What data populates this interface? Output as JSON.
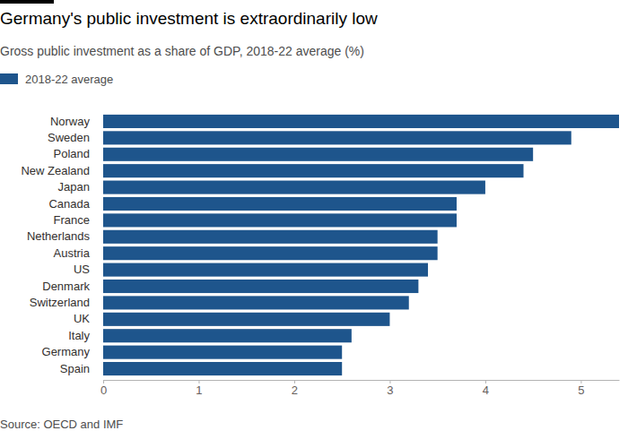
{
  "chart_data": {
    "type": "bar",
    "orientation": "horizontal",
    "title": "Germany's public investment is extraordinarily low",
    "subtitle": "Gross public investment as a share of GDP, 2018-22 average (%)",
    "source": "Source: OECD and IMF",
    "categories": [
      "Norway",
      "Sweden",
      "Poland",
      "New Zealand",
      "Japan",
      "Canada",
      "France",
      "Netherlands",
      "Austria",
      "US",
      "Denmark",
      "Switzerland",
      "UK",
      "Italy",
      "Germany",
      "Spain"
    ],
    "series": [
      {
        "name": "2018-22 average",
        "color": "#1e558c",
        "values": [
          5.4,
          4.9,
          4.5,
          4.4,
          4.0,
          3.7,
          3.7,
          3.5,
          3.5,
          3.4,
          3.3,
          3.2,
          3.0,
          2.6,
          2.5,
          2.5
        ]
      }
    ],
    "xlim": [
      0,
      5.4
    ],
    "xticks": [
      0,
      1,
      2,
      3,
      4,
      5
    ],
    "grid": false,
    "legend": "top-left"
  }
}
